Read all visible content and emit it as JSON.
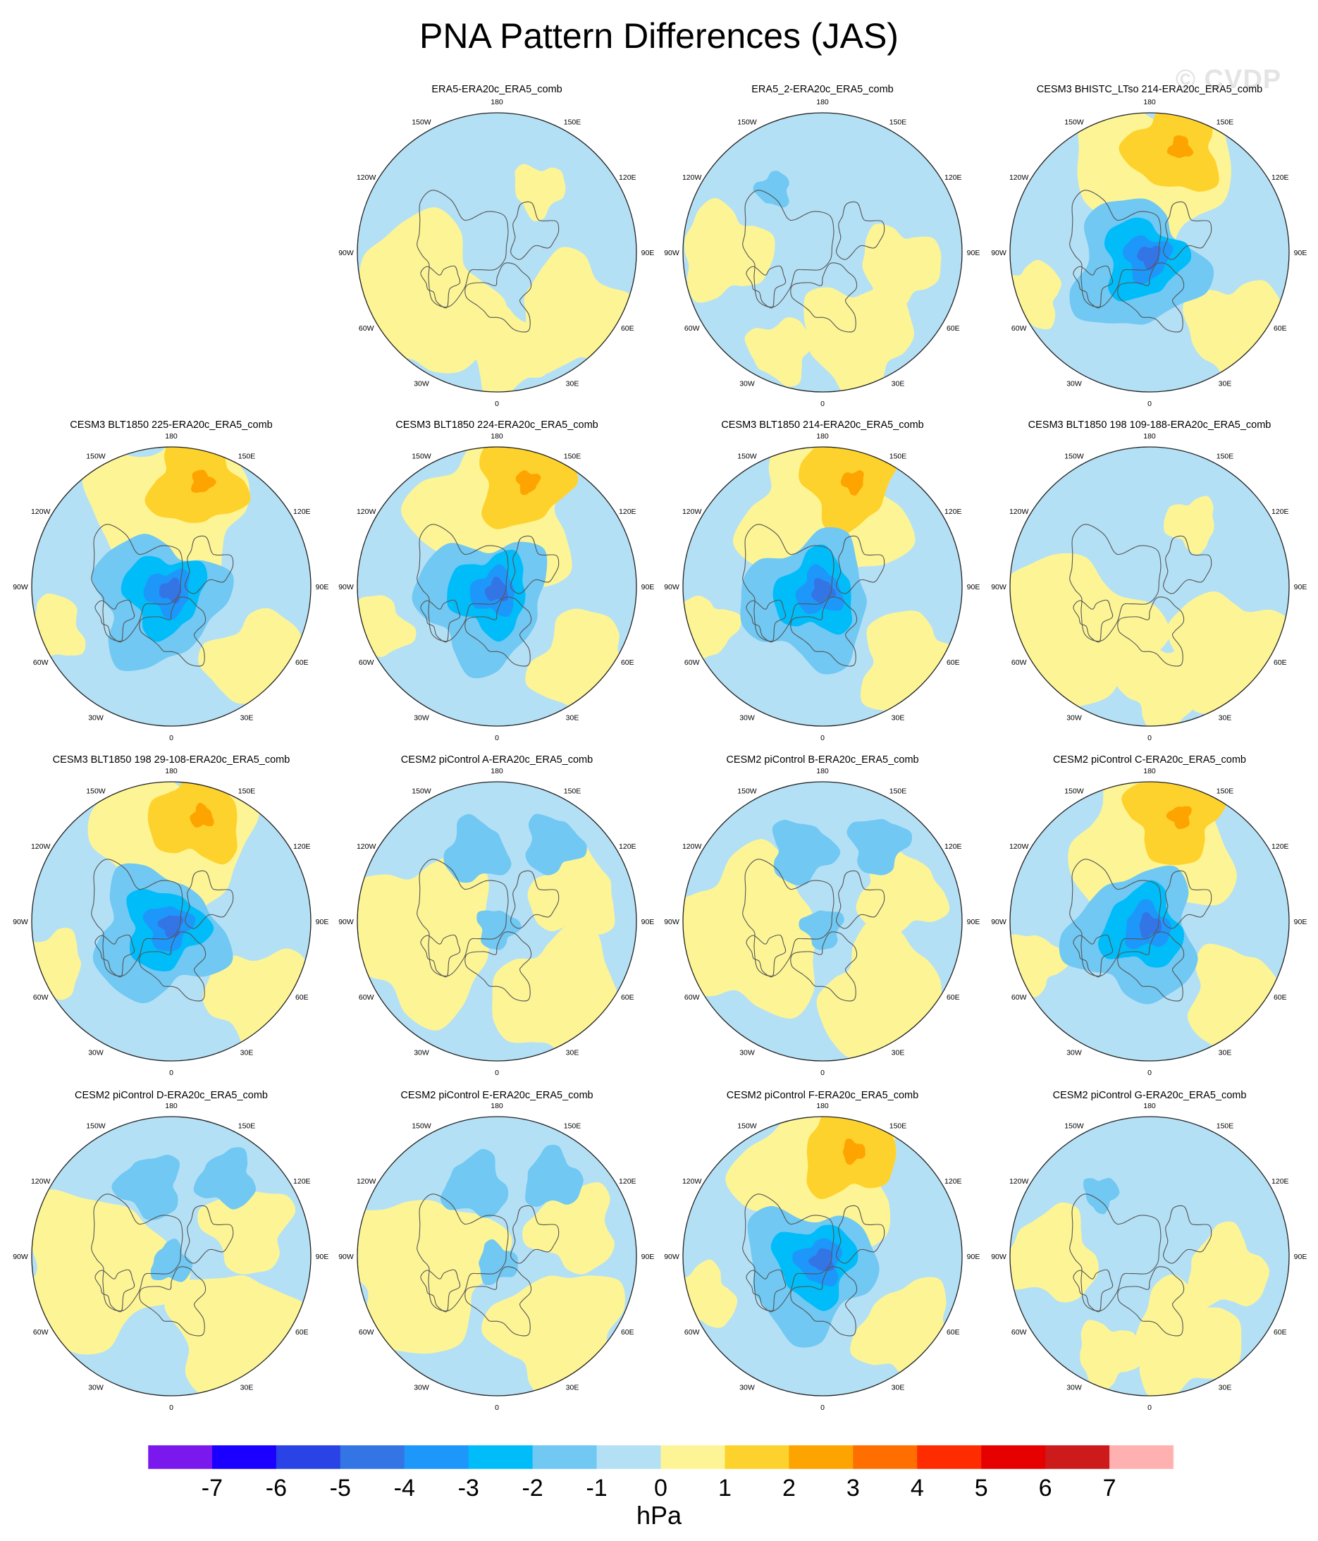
{
  "title": "PNA Pattern Differences (JAS)",
  "watermark": "© CVDP",
  "lon_labels": [
    "180",
    "150E",
    "120E",
    "90E",
    "60E",
    "30E",
    "0",
    "30W",
    "60W",
    "90W",
    "120W",
    "150W"
  ],
  "panels": [
    {
      "title": "ERA5-ERA20c_ERA5_comb",
      "row": 0,
      "col": 1,
      "style": "neutral_a"
    },
    {
      "title": "ERA5_2-ERA20c_ERA5_comb",
      "row": 0,
      "col": 2,
      "style": "neutral_b"
    },
    {
      "title": "CESM3 BHISTC_LTso 214-ERA20c_ERA5_comb",
      "row": 0,
      "col": 3,
      "style": "strong"
    },
    {
      "title": "CESM3 BLT1850 225-ERA20c_ERA5_comb",
      "row": 1,
      "col": 0,
      "style": "strong"
    },
    {
      "title": "CESM3 BLT1850 224-ERA20c_ERA5_comb",
      "row": 1,
      "col": 1,
      "style": "strong"
    },
    {
      "title": "CESM3 BLT1850 214-ERA20c_ERA5_comb",
      "row": 1,
      "col": 2,
      "style": "strong"
    },
    {
      "title": "CESM3 BLT1850 198 109-188-ERA20c_ERA5_comb",
      "row": 1,
      "col": 3,
      "style": "neutral_a"
    },
    {
      "title": "CESM3 BLT1850 198 29-108-ERA20c_ERA5_comb",
      "row": 2,
      "col": 0,
      "style": "strong"
    },
    {
      "title": "CESM2 piControl A-ERA20c_ERA5_comb",
      "row": 2,
      "col": 1,
      "style": "weak"
    },
    {
      "title": "CESM2 piControl B-ERA20c_ERA5_comb",
      "row": 2,
      "col": 2,
      "style": "weak"
    },
    {
      "title": "CESM2 piControl C-ERA20c_ERA5_comb",
      "row": 2,
      "col": 3,
      "style": "strong"
    },
    {
      "title": "CESM2 piControl D-ERA20c_ERA5_comb",
      "row": 3,
      "col": 0,
      "style": "weak"
    },
    {
      "title": "CESM2 piControl E-ERA20c_ERA5_comb",
      "row": 3,
      "col": 1,
      "style": "weak"
    },
    {
      "title": "CESM2 piControl F-ERA20c_ERA5_comb",
      "row": 3,
      "col": 2,
      "style": "strong"
    },
    {
      "title": "CESM2 piControl G-ERA20c_ERA5_comb",
      "row": 3,
      "col": 3,
      "style": "neutral_b"
    }
  ],
  "colorbar": {
    "units": "hPa",
    "tick_labels": [
      "-7",
      "-6",
      "-5",
      "-4",
      "-3",
      "-2",
      "-1",
      "0",
      "1",
      "2",
      "3",
      "4",
      "5",
      "6",
      "7"
    ],
    "colors": [
      "#7b18ee",
      "#1c00ff",
      "#2943e6",
      "#3475e6",
      "#1e97fa",
      "#00bcf9",
      "#70c8f3",
      "#b4e0f5",
      "#fdf595",
      "#fed22d",
      "#fea400",
      "#fe6f00",
      "#fe2c00",
      "#e60000",
      "#cd1a1a",
      "#ffb0b0"
    ]
  },
  "chart_data": {
    "type": "heatmap",
    "title": "PNA Pattern Differences (JAS)",
    "projection": "polar stereographic, Northern Hemisphere",
    "variable": "sea level pressure difference",
    "units": "hPa",
    "levels": [
      -7,
      -6,
      -5,
      -4,
      -3,
      -2,
      -1,
      0,
      1,
      2,
      3,
      4,
      5,
      6,
      7
    ],
    "n_panels": 15,
    "grid_rows": 4,
    "grid_cols": 4
  }
}
